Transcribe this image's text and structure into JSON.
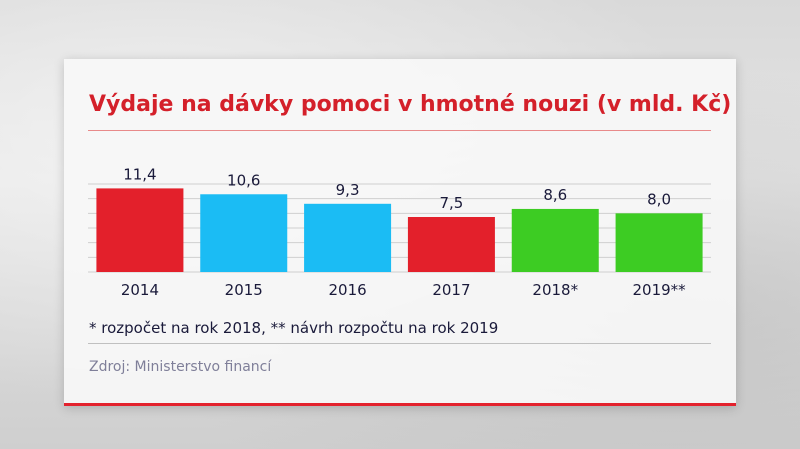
{
  "chart_data": {
    "type": "bar",
    "title": "Výdaje na dávky pomoci v hmotné nouzi (v mld. Kč)",
    "categories": [
      "2014",
      "2015",
      "2016",
      "2017",
      "2018*",
      "2019**"
    ],
    "values": [
      11.4,
      10.6,
      9.3,
      7.5,
      8.6,
      8.0
    ],
    "value_labels": [
      "11,4",
      "10,6",
      "9,3",
      "7,5",
      "8,6",
      "8,0"
    ],
    "bar_colors": [
      "#e3202b",
      "#1bbcf4",
      "#1bbcf4",
      "#e3202b",
      "#3dcc23",
      "#3dcc23"
    ],
    "ylim": [
      0,
      12
    ],
    "grid": true,
    "legend": "none",
    "footnote": "* rozpočet na rok 2018, ** návrh rozpočtu na rok 2019",
    "source": "Zdroj: Ministerstvo financí"
  }
}
